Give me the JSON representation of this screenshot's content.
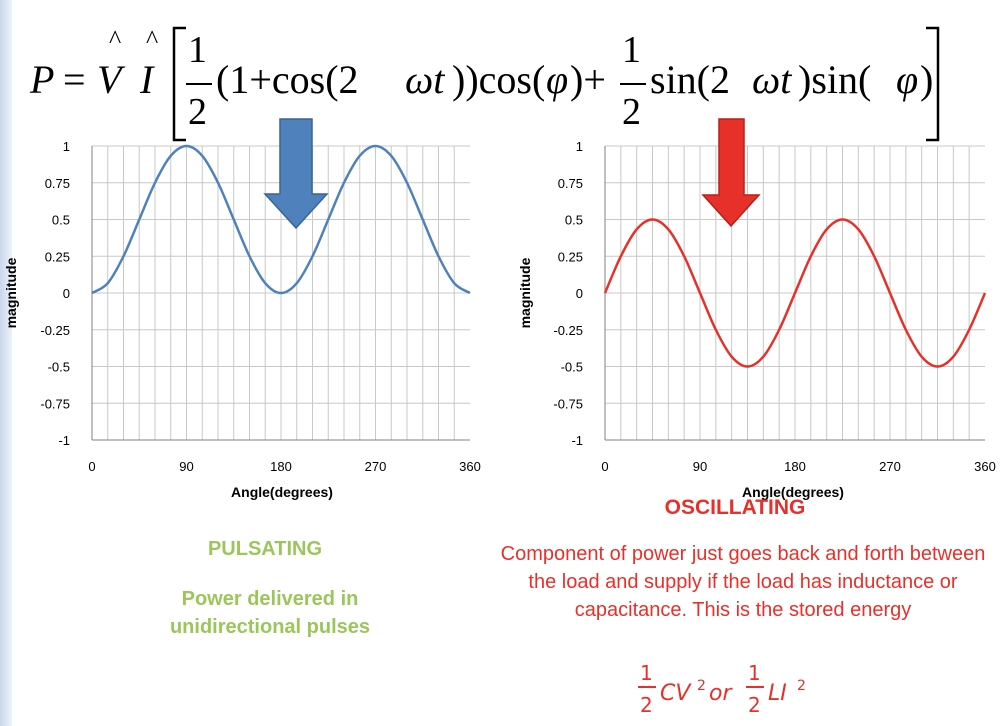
{
  "formula": {
    "P": "P",
    "eq": "=",
    "V": "V",
    "I": "I",
    "hat": "^",
    "half_num": "1",
    "half_den": "2",
    "term1": "(1+cos(2",
    "omega_t": "ωt",
    "term1_end": "))cos(",
    "phi": "φ",
    "close_plus": ")+",
    "term2": "sin(2",
    "term2_mid": ")sin(",
    "close": ")"
  },
  "left": {
    "label": "PULSATING",
    "description": "Power delivered in unidirectional pulses"
  },
  "right": {
    "label": "OSCILLATING",
    "description": "Component of power just goes back and forth between the load and supply if the load has inductance or capacitance.  This is the stored energy",
    "energy": {
      "num": "1",
      "den": "2",
      "term_c": "CV",
      "sq": "2",
      "or": "or",
      "term_l": "LI"
    }
  },
  "chart_data": [
    {
      "type": "line",
      "xlabel": "Angle(degrees)",
      "ylabel": "magnitude",
      "xlim": [
        0,
        360
      ],
      "ylim": [
        -1,
        1
      ],
      "x_ticks": [
        0,
        90,
        180,
        270,
        360
      ],
      "y_ticks": [
        1,
        0.75,
        0.5,
        0.25,
        0,
        -0.25,
        -0.5,
        -0.75,
        -1
      ],
      "y_tick_labels": [
        "1",
        "0.75",
        "0.5",
        "0.25",
        "0",
        "-0.25",
        "-0.5",
        "-0.75",
        "-1"
      ],
      "grid": true,
      "color": "#4f81bd",
      "annotation_arrow": "down",
      "annotation_arrow_color": "#4f81bd",
      "series": [
        {
          "x": [
            0,
            15,
            30,
            45,
            60,
            75,
            90,
            105,
            120,
            135,
            150,
            165,
            180,
            195,
            210,
            225,
            240,
            255,
            270,
            285,
            300,
            315,
            330,
            345,
            360
          ],
          "values": [
            0,
            0.067,
            0.25,
            0.5,
            0.75,
            0.933,
            1,
            0.933,
            0.75,
            0.5,
            0.25,
            0.067,
            0,
            0.067,
            0.25,
            0.5,
            0.75,
            0.933,
            1,
            0.933,
            0.75,
            0.5,
            0.25,
            0.067,
            0
          ]
        }
      ]
    },
    {
      "type": "line",
      "xlabel": "Angle(degrees)",
      "ylabel": "magnitude",
      "xlim": [
        0,
        360
      ],
      "ylim": [
        -1,
        1
      ],
      "x_ticks": [
        0,
        90,
        180,
        270,
        360
      ],
      "y_ticks": [
        1,
        0.75,
        0.5,
        0.25,
        0,
        -0.25,
        -0.5,
        -0.75,
        -1
      ],
      "y_tick_labels": [
        "1",
        "0.75",
        "0.5",
        "0.25",
        "0",
        "-0.25",
        "-0.5",
        "-0.75",
        "-1"
      ],
      "grid": true,
      "color": "#e8302a",
      "annotation_arrow": "down",
      "annotation_arrow_color": "#e8302a",
      "series": [
        {
          "x": [
            0,
            15,
            30,
            45,
            60,
            75,
            90,
            105,
            120,
            135,
            150,
            165,
            180,
            195,
            210,
            225,
            240,
            255,
            270,
            285,
            300,
            315,
            330,
            345,
            360
          ],
          "values": [
            0,
            0.25,
            0.433,
            0.5,
            0.433,
            0.25,
            0,
            -0.25,
            -0.433,
            -0.5,
            -0.433,
            -0.25,
            0,
            0.25,
            0.433,
            0.5,
            0.433,
            0.25,
            0,
            -0.25,
            -0.433,
            -0.5,
            -0.433,
            -0.25,
            0
          ]
        }
      ]
    }
  ]
}
